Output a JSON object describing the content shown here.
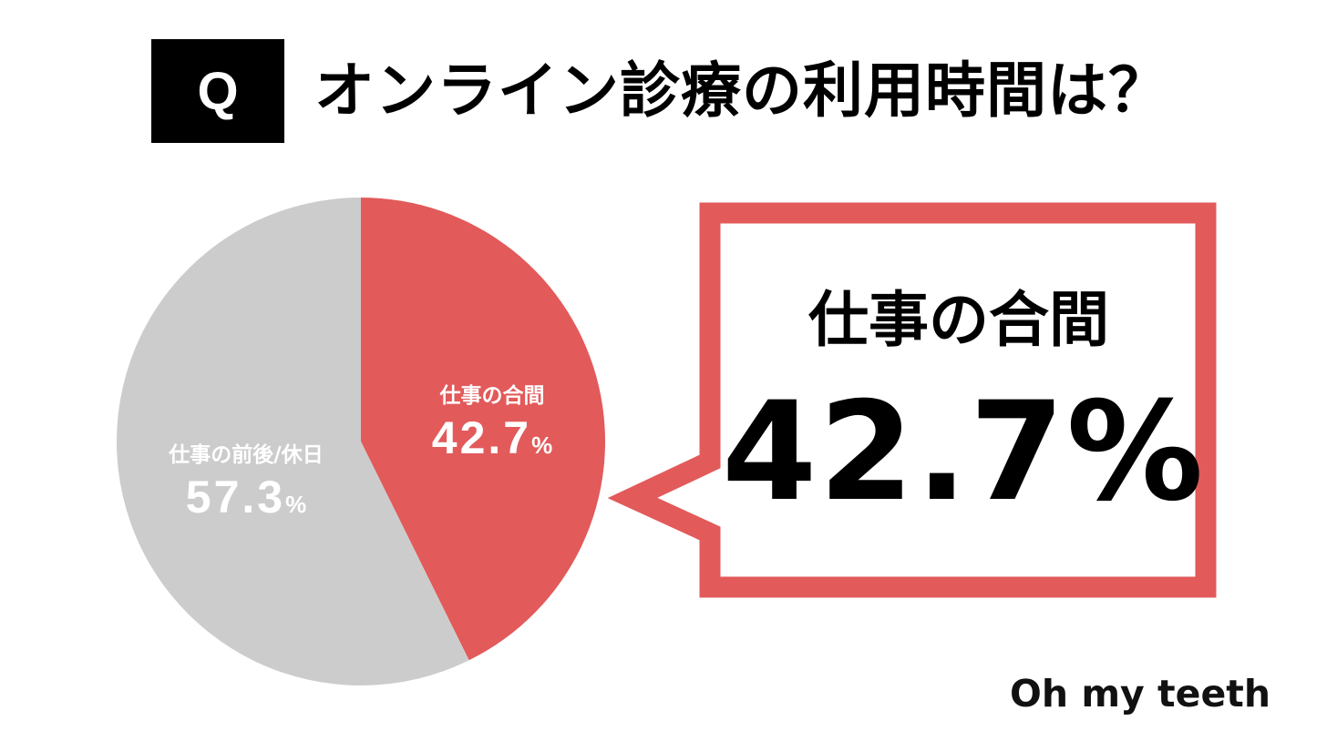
{
  "header": {
    "badge": "Q",
    "title": "オンライン診療の利用時間は？"
  },
  "chart_data": {
    "type": "pie",
    "title": "オンライン診療の利用時間は？",
    "slices": [
      {
        "label": "仕事の合間",
        "value": 42.7,
        "unit": "%",
        "color": "#e25a5a"
      },
      {
        "label": "仕事の前後/休日",
        "value": 57.3,
        "unit": "%",
        "color": "#cccccc"
      }
    ],
    "start_angle": "12 o'clock",
    "direction": "clockwise"
  },
  "pie_labels": [
    {
      "category": "仕事の合間",
      "value": "42.7",
      "unit": "%"
    },
    {
      "category": "仕事の前後/休日",
      "value": "57.3",
      "unit": "%"
    }
  ],
  "callout": {
    "category": "仕事の合間",
    "value": "42.7%",
    "border_color": "#e25a5a"
  },
  "brand": "Oh my teeth"
}
